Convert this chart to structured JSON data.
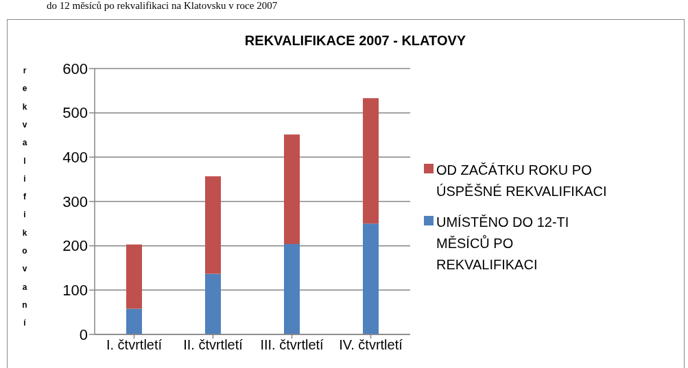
{
  "chart_data": {
    "type": "bar",
    "title": "REKVALIFIKACE 2007 - KLATOVY",
    "ylabel": "rekvalifikovaní",
    "annotations": [
      "do 12 měsíců po rekvalifikaci na Klatovsku v roce 2007"
    ],
    "categories": [
      "I. čtvrtletí",
      "II. čtvrtletí",
      "III. čtvrtletí",
      "IV. čtvrtletí"
    ],
    "series": [
      {
        "name": "UMÍSTĚNO DO 12-TI MĚSÍCŮ PO REKVALIFIKACI",
        "color": "#4f81bd",
        "values": [
          58,
          137,
          204,
          250
        ]
      },
      {
        "name": "OD ZAČÁTKU ROKU PO ÚSPĚŠNÉ REKVALIFIKACI",
        "color": "#c0504d",
        "values": [
          145,
          220,
          247,
          283
        ]
      }
    ],
    "stacked": true,
    "ylim": [
      0,
      600
    ],
    "yticks": [
      0,
      100,
      200,
      300,
      400,
      500,
      600
    ],
    "grid": "y",
    "legend": "right"
  }
}
